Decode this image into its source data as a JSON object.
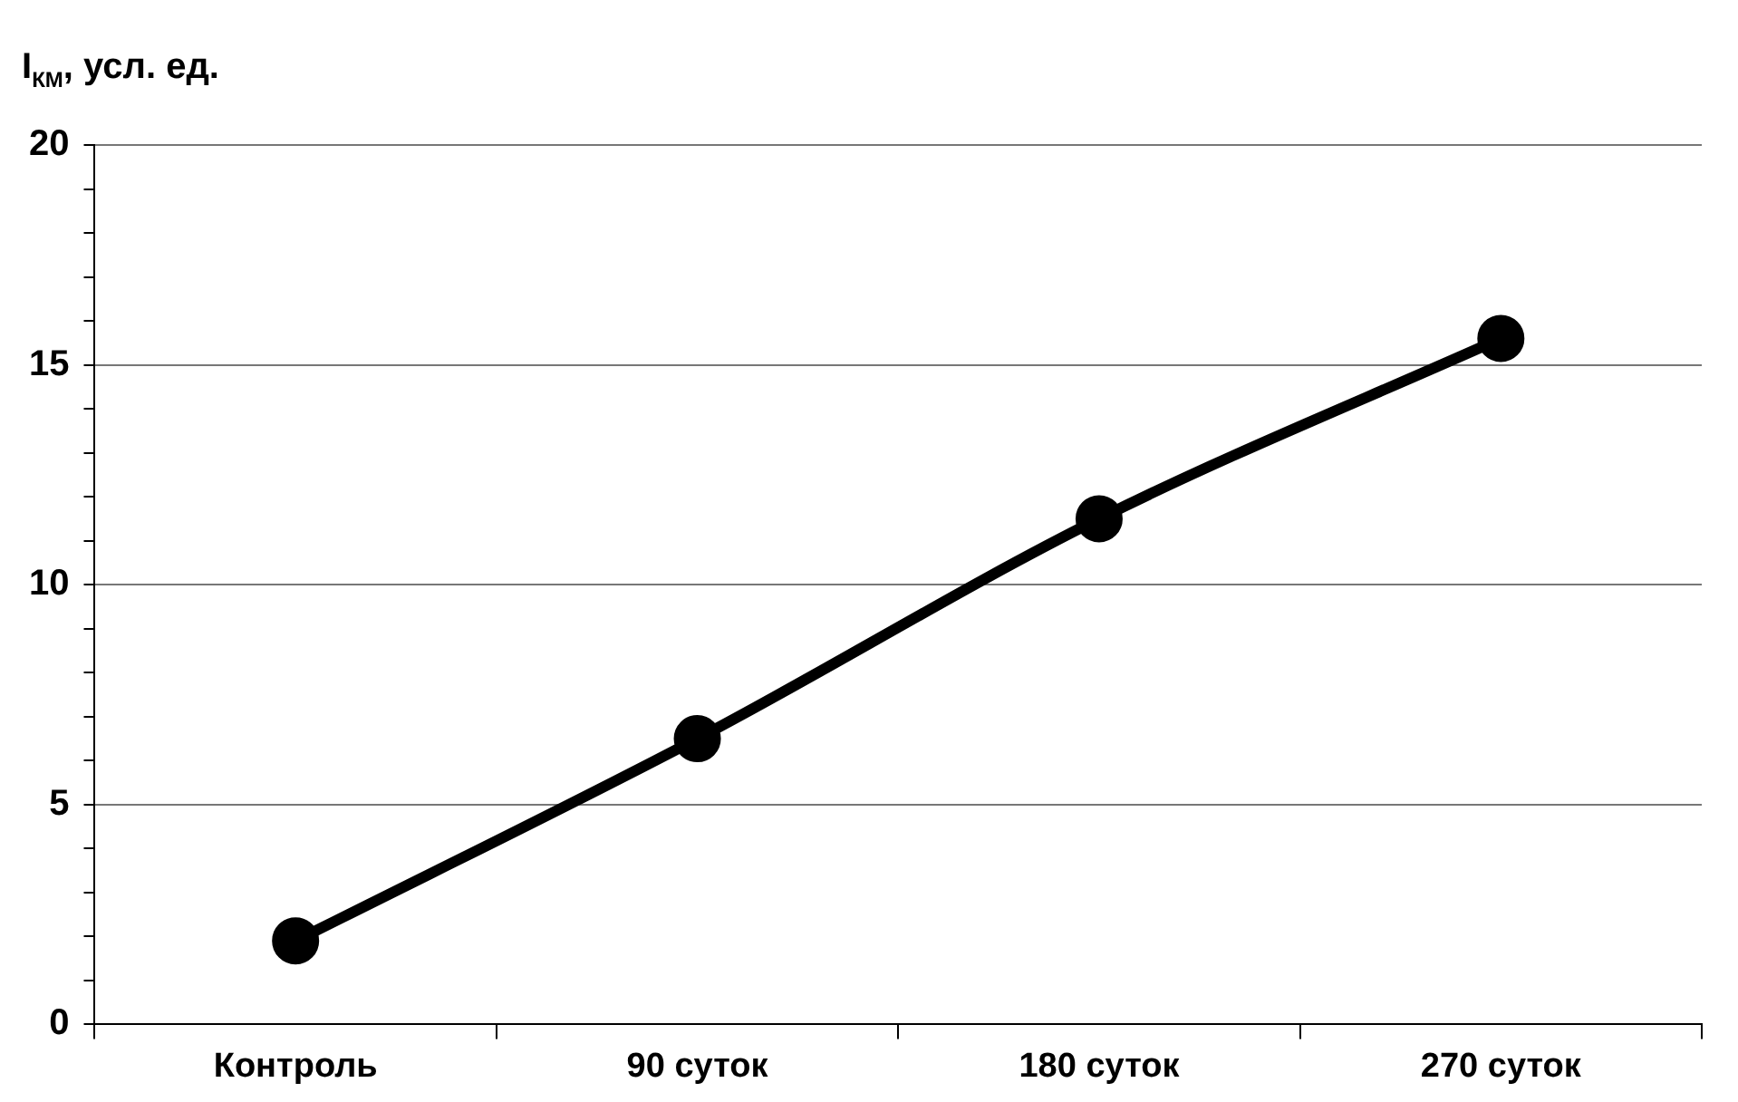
{
  "chart_data": {
    "type": "line",
    "ylabel": "I$_{КМ}$, усл. ед.",
    "categories": [
      "Контроль",
      "90 суток",
      "180 суток",
      "270 суток"
    ],
    "series": [
      {
        "color": "#000000",
        "values": [
          1.9,
          6.5,
          11.5,
          15.6
        ]
      }
    ],
    "ylim": [
      0,
      20
    ],
    "yticks": [
      0,
      {
        "value": 1,
        "label": null
      },
      {
        "value": 2,
        "label": null
      },
      {
        "value": 3,
        "label": null
      },
      {
        "value": 4,
        "label": null
      },
      5,
      {
        "value": 6,
        "label": null
      },
      {
        "value": 7,
        "label": null
      },
      {
        "value": 8,
        "label": null
      },
      {
        "value": 9,
        "label": null
      },
      10,
      {
        "value": 11,
        "label": null
      },
      {
        "value": 12,
        "label": null
      },
      {
        "value": 13,
        "label": null
      },
      {
        "value": 14,
        "label": null
      },
      15,
      {
        "value": 16,
        "label": null
      },
      {
        "value": 17,
        "label": null
      },
      {
        "value": 18,
        "label": null
      },
      {
        "value": 19,
        "label": null
      },
      20
    ],
    "grid": "y",
    "legend": false,
    "marker": "circle",
    "line_style": "solid"
  }
}
